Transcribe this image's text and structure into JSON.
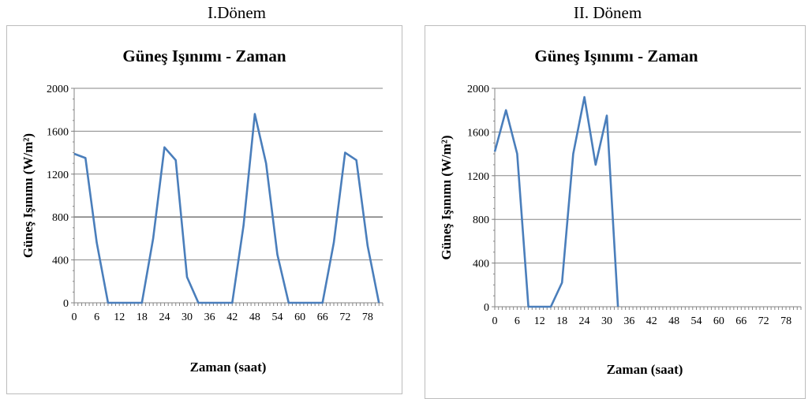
{
  "panels": [
    {
      "heading": "I.Dönem"
    },
    {
      "heading": "II. Dönem"
    }
  ],
  "colors": {
    "series": "#4a7ebb",
    "grid": "#868686",
    "axis": "#868686",
    "frame": "#bcbcbc"
  },
  "chart_data": [
    {
      "type": "line",
      "title": "Güneş Işınımı - Zaman",
      "xlabel": "Zaman (saat)",
      "ylabel": "Güneş Işınımı (W/m²)",
      "xlim": [
        0,
        82
      ],
      "ylim": [
        0,
        2000
      ],
      "xticks": [
        "0",
        "6",
        "12",
        "18",
        "24",
        "30",
        "36",
        "42",
        "48",
        "54",
        "60",
        "66",
        "72",
        "78"
      ],
      "yticks": [
        "0",
        "400",
        "800",
        "1200",
        "1600",
        "2000"
      ],
      "grid": true,
      "legend": "none",
      "series": [
        {
          "x": [
            0,
            3,
            6,
            9,
            12,
            15,
            18,
            21,
            24,
            27,
            30,
            33,
            36,
            39,
            42,
            45,
            48,
            51,
            54,
            57,
            60,
            63,
            66,
            69,
            72,
            75,
            78,
            81
          ],
          "y": [
            1390,
            1350,
            560,
            0,
            0,
            0,
            0,
            600,
            1450,
            1330,
            240,
            0,
            0,
            0,
            0,
            720,
            1760,
            1300,
            450,
            0,
            0,
            0,
            0,
            560,
            1400,
            1330,
            530,
            0
          ]
        }
      ]
    },
    {
      "type": "line",
      "title": "Güneş Işınımı - Zaman",
      "xlabel": "Zaman (saat)",
      "ylabel": "Güneş Işınımı (W/m²)",
      "xlim": [
        0,
        82
      ],
      "ylim": [
        0,
        2000
      ],
      "xticks": [
        "0",
        "6",
        "12",
        "18",
        "24",
        "30",
        "36",
        "42",
        "48",
        "54",
        "60",
        "66",
        "72",
        "78"
      ],
      "yticks": [
        "0",
        "400",
        "800",
        "1200",
        "1600",
        "2000"
      ],
      "grid": true,
      "legend": "none",
      "series": [
        {
          "x": [
            0,
            3,
            6,
            9,
            12,
            15,
            18,
            21,
            24,
            27,
            30,
            33
          ],
          "y": [
            1420,
            1800,
            1400,
            0,
            0,
            0,
            220,
            1400,
            1920,
            1300,
            1750,
            0
          ]
        }
      ]
    }
  ]
}
